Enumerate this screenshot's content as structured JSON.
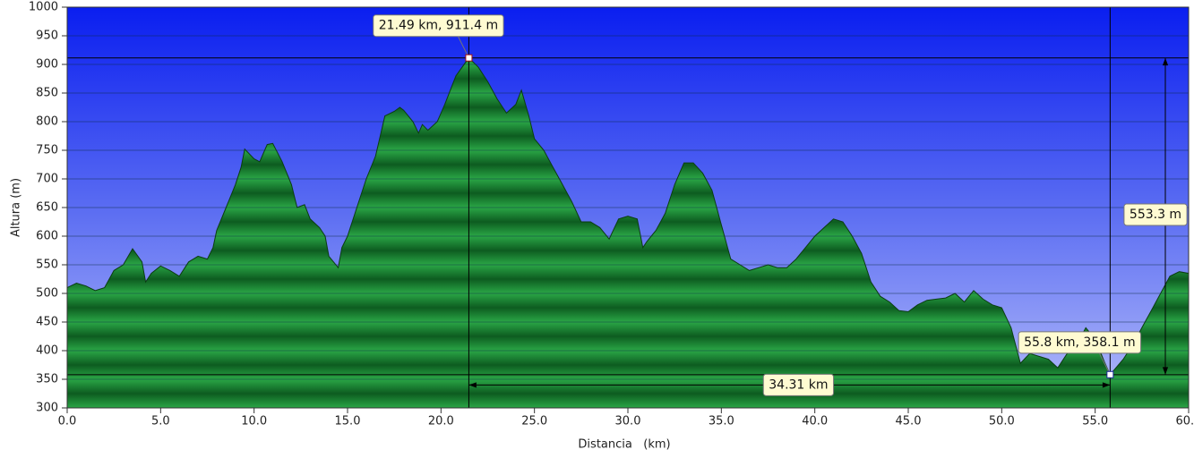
{
  "chart_data": {
    "type": "area",
    "xlabel": "Distancia   (km)",
    "ylabel": "Altura (m)",
    "xlim": [
      0,
      60
    ],
    "ylim": [
      300,
      1000
    ],
    "xticks": [
      {
        "value": 0,
        "label": "0.0"
      },
      {
        "value": 5,
        "label": "5.0"
      },
      {
        "value": 10,
        "label": "10.0"
      },
      {
        "value": 15,
        "label": "15.0"
      },
      {
        "value": 20,
        "label": "20.0"
      },
      {
        "value": 25,
        "label": "25.0"
      },
      {
        "value": 30,
        "label": "30.0"
      },
      {
        "value": 35,
        "label": "35.0"
      },
      {
        "value": 40,
        "label": "40.0"
      },
      {
        "value": 45,
        "label": "45.0"
      },
      {
        "value": 50,
        "label": "50.0"
      },
      {
        "value": 55,
        "label": "55.0"
      },
      {
        "value": 60,
        "label": "60.0"
      }
    ],
    "yticks": [
      300,
      350,
      400,
      450,
      500,
      550,
      600,
      650,
      700,
      750,
      800,
      850,
      900,
      950,
      1000
    ],
    "grid": true,
    "color": "#1e9638",
    "x": [
      0,
      0.5,
      1,
      1.5,
      2,
      2.5,
      3,
      3.5,
      4,
      4.2,
      4.5,
      5,
      5.5,
      6,
      6.5,
      7,
      7.5,
      7.8,
      8,
      8.5,
      9,
      9.3,
      9.5,
      10,
      10.3,
      10.7,
      11,
      11.5,
      12,
      12.3,
      12.7,
      13,
      13.5,
      13.8,
      14,
      14.5,
      14.7,
      15,
      15.5,
      16,
      16.5,
      17,
      17.5,
      17.8,
      18,
      18.5,
      18.8,
      19,
      19.3,
      19.8,
      20.2,
      20.8,
      21.49,
      22,
      22.5,
      23,
      23.5,
      24,
      24.3,
      24.7,
      25,
      25.5,
      26,
      26.5,
      27,
      27.5,
      28,
      28.5,
      29,
      29.5,
      30,
      30.5,
      30.8,
      31,
      31.5,
      32,
      32.5,
      33,
      33.5,
      34,
      34.5,
      35,
      35.5,
      36,
      36.5,
      37,
      37.5,
      38,
      38.5,
      39,
      39.5,
      40,
      40.5,
      41,
      41.5,
      42,
      42.5,
      43,
      43.5,
      44,
      44.5,
      45,
      45.5,
      46,
      46.5,
      47,
      47.5,
      48,
      48.5,
      49,
      49.5,
      50,
      50.5,
      51,
      51.5,
      52,
      52.5,
      53,
      53.5,
      54,
      54.5,
      55,
      55.5,
      55.8,
      56.5,
      57,
      57.5,
      58,
      58.5,
      59,
      59.5,
      60
    ],
    "values": [
      510,
      518,
      513,
      505,
      510,
      540,
      550,
      578,
      555,
      520,
      535,
      548,
      540,
      530,
      555,
      565,
      560,
      580,
      610,
      650,
      690,
      720,
      752,
      735,
      730,
      760,
      762,
      730,
      690,
      650,
      655,
      630,
      615,
      600,
      565,
      545,
      580,
      600,
      650,
      700,
      740,
      810,
      818,
      825,
      820,
      800,
      780,
      795,
      785,
      800,
      830,
      880,
      911.4,
      895,
      870,
      840,
      815,
      830,
      855,
      810,
      770,
      750,
      720,
      690,
      660,
      625,
      625,
      615,
      595,
      630,
      635,
      630,
      580,
      590,
      610,
      640,
      690,
      728,
      728,
      710,
      680,
      620,
      560,
      550,
      540,
      545,
      550,
      545,
      545,
      560,
      580,
      600,
      615,
      630,
      625,
      600,
      570,
      520,
      495,
      485,
      470,
      468,
      480,
      488,
      490,
      492,
      500,
      485,
      505,
      490,
      480,
      475,
      440,
      378,
      395,
      390,
      385,
      370,
      395,
      410,
      440,
      420,
      380,
      358.1,
      385,
      410,
      440,
      470,
      500,
      530,
      538,
      535
    ],
    "markers": [
      {
        "x": 21.49,
        "y": 911.4,
        "label": "21.49 km, 911.4 m"
      },
      {
        "x": 55.8,
        "y": 358.1,
        "label": "55.8 km, 358.1 m"
      }
    ],
    "distance_label": "34.31 km",
    "height_label": "553.3 m"
  }
}
